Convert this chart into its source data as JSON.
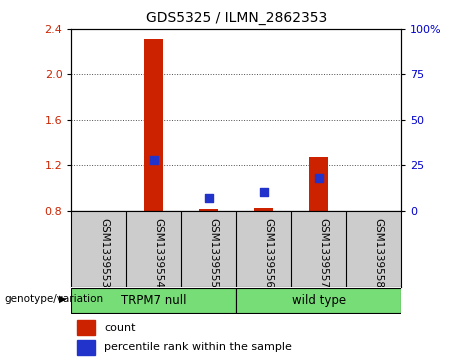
{
  "title": "GDS5325 / ILMN_2862353",
  "samples": [
    "GSM1339553",
    "GSM1339554",
    "GSM1339555",
    "GSM1339556",
    "GSM1339557",
    "GSM1339558"
  ],
  "count_values": [
    0.8,
    2.31,
    0.81,
    0.82,
    1.27,
    0.8
  ],
  "percentile_values": [
    null,
    28.0,
    7.0,
    10.0,
    18.0,
    null
  ],
  "ylim_left": [
    0.8,
    2.4
  ],
  "ylim_right": [
    0,
    100
  ],
  "yticks_left": [
    0.8,
    1.2,
    1.6,
    2.0,
    2.4
  ],
  "yticks_right": [
    0,
    25,
    50,
    75,
    100
  ],
  "bar_color": "#cc2200",
  "dot_color": "#2233cc",
  "groups": [
    {
      "label": "TRPM7 null",
      "start": 0,
      "end": 3,
      "color": "#77dd77"
    },
    {
      "label": "wild type",
      "start": 3,
      "end": 6,
      "color": "#77dd77"
    }
  ],
  "group_label_prefix": "genotype/variation",
  "baseline": 0.8,
  "bar_width": 0.35,
  "dot_size": 40,
  "bg_color": "#ffffff",
  "sample_area_color": "#cccccc",
  "right_yaxis_color": "#0000cc",
  "left_yaxis_color": "#cc2200",
  "legend_items": [
    "count",
    "percentile rank within the sample"
  ]
}
